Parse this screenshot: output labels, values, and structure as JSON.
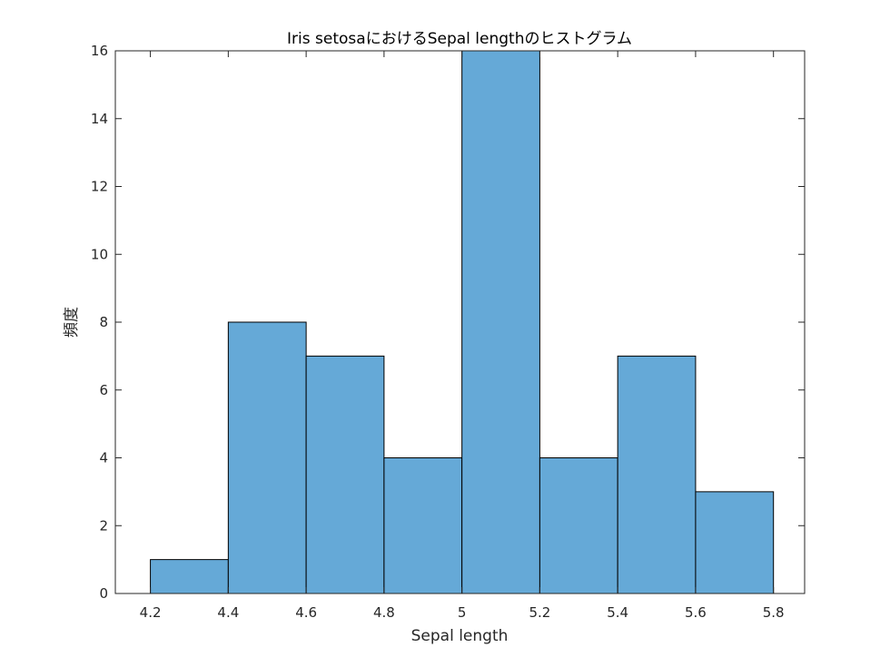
{
  "chart_data": {
    "type": "bar",
    "title": "Iris setosaにおけるSepal lengthのヒストグラム",
    "xlabel": "Sepal length",
    "ylabel": "頻度",
    "bin_edges": [
      4.2,
      4.4,
      4.6,
      4.8,
      5.0,
      5.2,
      5.4,
      5.6,
      5.8
    ],
    "values": [
      1,
      8,
      7,
      4,
      16,
      4,
      7,
      3
    ],
    "xlim": [
      4.11,
      5.88
    ],
    "ylim": [
      0,
      16
    ],
    "xticks": [
      {
        "value": 4.2,
        "label": "4.2"
      },
      {
        "value": 4.4,
        "label": "4.4"
      },
      {
        "value": 4.6,
        "label": "4.6"
      },
      {
        "value": 4.8,
        "label": "4.8"
      },
      {
        "value": 5.0,
        "label": "5"
      },
      {
        "value": 5.2,
        "label": "5.2"
      },
      {
        "value": 5.4,
        "label": "5.4"
      },
      {
        "value": 5.6,
        "label": "5.6"
      },
      {
        "value": 5.8,
        "label": "5.8"
      }
    ],
    "yticks": [
      {
        "value": 0,
        "label": "0"
      },
      {
        "value": 2,
        "label": "2"
      },
      {
        "value": 4,
        "label": "4"
      },
      {
        "value": 6,
        "label": "6"
      },
      {
        "value": 8,
        "label": "8"
      },
      {
        "value": 10,
        "label": "10"
      },
      {
        "value": 12,
        "label": "12"
      },
      {
        "value": 14,
        "label": "14"
      },
      {
        "value": 16,
        "label": "16"
      }
    ],
    "bar_color": "#65a9d7",
    "edge_color": "#000000",
    "grid": false,
    "legend": "none"
  }
}
